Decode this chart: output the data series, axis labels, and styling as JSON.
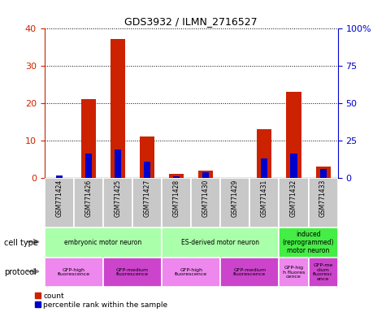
{
  "title": "GDS3932 / ILMN_2716527",
  "samples": [
    "GSM771424",
    "GSM771426",
    "GSM771425",
    "GSM771427",
    "GSM771428",
    "GSM771430",
    "GSM771429",
    "GSM771431",
    "GSM771432",
    "GSM771433"
  ],
  "counts": [
    0,
    21,
    37,
    11,
    1,
    2,
    0,
    13,
    23,
    3
  ],
  "percentile_ranks": [
    1.5,
    16,
    19,
    11,
    1,
    4,
    0,
    13,
    16,
    6
  ],
  "ylim_left": [
    0,
    40
  ],
  "ylim_right": [
    0,
    100
  ],
  "yticks_left": [
    0,
    10,
    20,
    30,
    40
  ],
  "yticks_right": [
    0,
    25,
    50,
    75,
    100
  ],
  "ytick_labels_right": [
    "0",
    "25",
    "50",
    "75",
    "100%"
  ],
  "cell_type_groups": [
    {
      "label": "embryonic motor neuron",
      "start": 0,
      "end": 3,
      "color": "#aaffaa"
    },
    {
      "label": "ES-derived motor neuron",
      "start": 4,
      "end": 7,
      "color": "#aaffaa"
    },
    {
      "label": "induced\n(reprogrammed)\nmotor neuron",
      "start": 8,
      "end": 9,
      "color": "#44ee44"
    }
  ],
  "protocol_groups": [
    {
      "label": "GFP-high\nfluorescence",
      "start": 0,
      "end": 1,
      "color": "#ee88ee"
    },
    {
      "label": "GFP-medium\nfluorescence",
      "start": 2,
      "end": 3,
      "color": "#cc44cc"
    },
    {
      "label": "GFP-high\nfluorescence",
      "start": 4,
      "end": 5,
      "color": "#ee88ee"
    },
    {
      "label": "GFP-medium\nfluorescence",
      "start": 6,
      "end": 7,
      "color": "#cc44cc"
    },
    {
      "label": "GFP-hig\nh fluores\ncence",
      "start": 8,
      "end": 8,
      "color": "#ee88ee"
    },
    {
      "label": "GFP-me\ndium\nfluoresc\nence",
      "start": 9,
      "end": 9,
      "color": "#cc44cc"
    }
  ],
  "bar_color_red": "#cc2200",
  "bar_color_blue": "#0000cc",
  "sample_bg_color": "#c8c8c8",
  "left_axis_color": "#cc2200",
  "right_axis_color": "#0000cc",
  "legend_count_label": "count",
  "legend_pct_label": "percentile rank within the sample",
  "cell_type_label": "cell type",
  "protocol_label": "protocol"
}
